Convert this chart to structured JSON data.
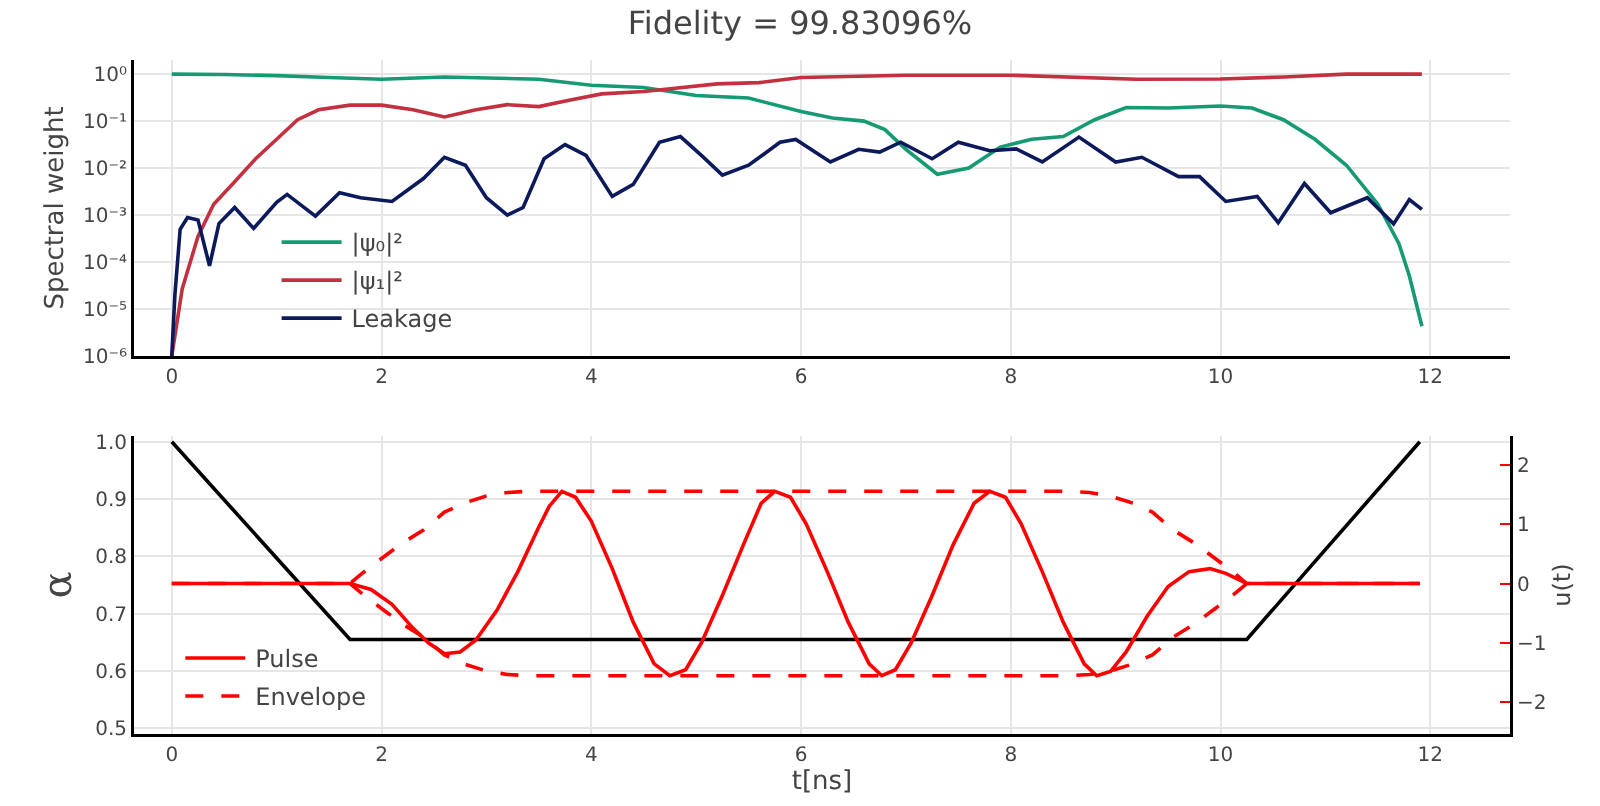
{
  "chart_data": [
    {
      "type": "line",
      "title": "Fidelity = 99.83096%",
      "ylabel": "Spectral weight",
      "log": "y",
      "grid": true,
      "legend": "bottom left",
      "xlim": [
        -0.36,
        12.76
      ],
      "xticks": [
        0,
        2,
        4,
        6,
        8,
        10,
        12
      ],
      "ylim": [
        1e-06,
        2
      ],
      "yticks": [
        {
          "value": 1e-06,
          "label": "10⁻⁶"
        },
        {
          "value": 1e-05,
          "label": "10⁻⁵"
        },
        {
          "value": 0.0001,
          "label": "10⁻⁴"
        },
        {
          "value": 0.001,
          "label": "10⁻³"
        },
        {
          "value": 0.01,
          "label": "10⁻²"
        },
        {
          "value": 0.1,
          "label": "10⁻¹"
        },
        {
          "value": 1,
          "label": "10⁰"
        }
      ],
      "series": [
        {
          "name": "|ψ₀|²",
          "color": "#159a74",
          "x": [
            0,
            0.5,
            1,
            1.5,
            2,
            2.6,
            3.5,
            4,
            4.5,
            5,
            5.5,
            6,
            6.3,
            6.6,
            6.8,
            7,
            7.3,
            7.6,
            7.9,
            8.2,
            8.5,
            8.8,
            9.1,
            9.5,
            10,
            10.3,
            10.6,
            10.9,
            11.2,
            11.5,
            11.7,
            11.8,
            11.92
          ],
          "values": [
            1.0,
            0.98,
            0.93,
            0.85,
            0.78,
            0.87,
            0.78,
            0.58,
            0.52,
            0.35,
            0.31,
            0.16,
            0.117,
            0.1,
            0.066,
            0.025,
            0.0074,
            0.01,
            0.028,
            0.041,
            0.047,
            0.107,
            0.195,
            0.19,
            0.21,
            0.19,
            0.107,
            0.041,
            0.0115,
            0.0017,
            0.00025,
            5.1e-05,
            4.3e-06
          ]
        },
        {
          "name": "|ψ₁|²",
          "color": "#c3303f",
          "x": [
            0,
            0.1,
            0.25,
            0.4,
            0.6,
            0.8,
            1.0,
            1.2,
            1.4,
            1.7,
            2.0,
            2.3,
            2.6,
            2.9,
            3.2,
            3.5,
            3.8,
            4.1,
            4.5,
            4.8,
            5.2,
            5.6,
            6.0,
            7.0,
            8.0,
            9.2,
            10.0,
            10.6,
            11.2,
            11.92
          ],
          "values": [
            1e-06,
            2.7e-05,
            0.00035,
            0.0017,
            0.0051,
            0.0158,
            0.041,
            0.107,
            0.174,
            0.219,
            0.219,
            0.174,
            0.123,
            0.174,
            0.224,
            0.204,
            0.282,
            0.38,
            0.427,
            0.5,
            0.62,
            0.66,
            0.85,
            0.95,
            0.95,
            0.78,
            0.79,
            0.87,
            1.0,
            1.0
          ]
        },
        {
          "name": "Leakage",
          "color": "#0c1a5c",
          "x": [
            0,
            0.03,
            0.08,
            0.15,
            0.25,
            0.36,
            0.45,
            0.6,
            0.78,
            1.0,
            1.1,
            1.37,
            1.6,
            1.8,
            2.1,
            2.4,
            2.6,
            2.8,
            3.0,
            3.2,
            3.35,
            3.55,
            3.75,
            3.95,
            4.2,
            4.4,
            4.65,
            4.85,
            5.05,
            5.25,
            5.5,
            5.8,
            5.95,
            6.28,
            6.55,
            6.75,
            6.95,
            7.25,
            7.5,
            7.8,
            8.05,
            8.3,
            8.65,
            9.0,
            9.25,
            9.6,
            9.8,
            10.05,
            10.35,
            10.55,
            10.8,
            11.05,
            11.4,
            11.65,
            11.8,
            11.92
          ],
          "values": [
            1e-06,
            2e-05,
            0.0005,
            0.00089,
            0.00079,
            8.3e-05,
            0.00066,
            0.00145,
            0.00052,
            0.00186,
            0.00275,
            0.00095,
            0.003,
            0.00234,
            0.00195,
            0.006,
            0.017,
            0.0115,
            0.00234,
            0.001,
            0.00145,
            0.0158,
            0.0316,
            0.0186,
            0.0025,
            0.0045,
            0.0355,
            0.0468,
            0.0186,
            0.0071,
            0.0115,
            0.0355,
            0.0407,
            0.0135,
            0.0251,
            0.0219,
            0.0355,
            0.0158,
            0.0355,
            0.0234,
            0.0257,
            0.0135,
            0.0457,
            0.0135,
            0.017,
            0.0066,
            0.0066,
            0.00195,
            0.0025,
            0.00069,
            0.0047,
            0.00112,
            0.00234,
            0.00065,
            0.00214,
            0.00132
          ]
        }
      ]
    },
    {
      "type": "line",
      "xlabel": "t[ns]",
      "ylabel": "α",
      "y2label": "u(t)",
      "grid": true,
      "legend": "bottom left",
      "xlim": [
        -0.36,
        12.76
      ],
      "xticks": [
        0,
        2,
        4,
        6,
        8,
        10,
        12
      ],
      "ylim": [
        0.49,
        1.01
      ],
      "yticks": [
        0.5,
        0.6,
        0.7,
        0.8,
        0.9,
        {
          "value": 1,
          "label": "1.0"
        }
      ],
      "y2lim": [
        -2.53,
        2.48
      ],
      "y2ticks": [
        {
          "value": -2,
          "label": "−2"
        },
        {
          "value": -1,
          "label": "−1"
        },
        0,
        1,
        2
      ],
      "series": [
        {
          "color": "#000000",
          "axis": "y",
          "x": [
            0,
            1.7,
            10.25,
            11.9
          ],
          "values": [
            1.0,
            0.655,
            0.655,
            1.0
          ]
        },
        {
          "name": "Pulse",
          "color": "#ff0000",
          "axis": "y2",
          "line_style": "solid",
          "x": [
            0,
            1.7,
            1.9,
            2.1,
            2.3,
            2.45,
            2.6,
            2.75,
            2.9,
            3.1,
            3.3,
            3.5,
            3.6,
            3.72,
            3.85,
            4.0,
            4.2,
            4.4,
            4.6,
            4.75,
            4.9,
            5.05,
            5.25,
            5.45,
            5.62,
            5.75,
            5.9,
            6.05,
            6.25,
            6.45,
            6.65,
            6.77,
            6.9,
            7.05,
            7.25,
            7.45,
            7.65,
            7.8,
            7.95,
            8.1,
            8.3,
            8.5,
            8.7,
            8.82,
            8.95,
            9.1,
            9.3,
            9.5,
            9.7,
            9.9,
            10.05,
            10.25,
            11.9
          ],
          "values": [
            0,
            0,
            -0.1,
            -0.35,
            -0.75,
            -1.0,
            -1.18,
            -1.15,
            -0.95,
            -0.45,
            0.2,
            0.95,
            1.3,
            1.55,
            1.45,
            1.05,
            0.25,
            -0.65,
            -1.35,
            -1.55,
            -1.45,
            -1.0,
            -0.2,
            0.65,
            1.35,
            1.55,
            1.45,
            1.0,
            0.2,
            -0.65,
            -1.35,
            -1.55,
            -1.45,
            -1.0,
            -0.2,
            0.65,
            1.35,
            1.55,
            1.45,
            1.0,
            0.2,
            -0.65,
            -1.35,
            -1.55,
            -1.48,
            -1.15,
            -0.55,
            -0.05,
            0.2,
            0.25,
            0.17,
            0,
            0
          ]
        },
        {
          "name": "Envelope",
          "color": "#ff0000",
          "axis": "y2",
          "line_style": "dashed",
          "x": [
            0,
            1.7,
            1.8,
            2.0,
            2.2,
            2.4,
            2.6,
            2.8,
            3.0,
            3.2,
            3.4,
            8.55,
            8.75,
            8.95,
            9.15,
            9.35,
            9.55,
            9.75,
            9.95,
            10.15,
            10.25,
            11.9,
            10.25,
            10.15,
            9.95,
            9.75,
            9.55,
            9.35,
            9.15,
            8.95,
            8.75,
            8.55,
            3.4,
            3.2,
            3.0,
            2.8,
            2.6,
            2.4,
            2.2,
            2.0,
            1.8,
            1.7
          ],
          "values": [
            0,
            0,
            0.15,
            0.42,
            0.68,
            0.9,
            1.2,
            1.36,
            1.47,
            1.53,
            1.55,
            1.55,
            1.53,
            1.47,
            1.36,
            1.2,
            0.9,
            0.68,
            0.42,
            0.15,
            0,
            0,
            0,
            -0.15,
            -0.42,
            -0.68,
            -0.9,
            -1.2,
            -1.36,
            -1.47,
            -1.53,
            -1.55,
            -1.55,
            -1.53,
            -1.47,
            -1.36,
            -1.2,
            -0.9,
            -0.68,
            -0.42,
            -0.15,
            0
          ]
        }
      ]
    }
  ]
}
